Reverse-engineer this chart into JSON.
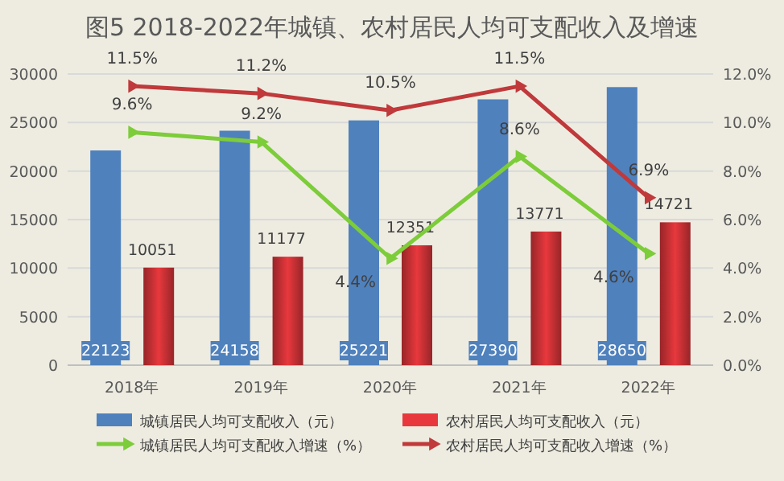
{
  "chart_data": {
    "type": "bar",
    "title": "图5 2018-2022年城镇、农村居民人均可支配收入及增速",
    "categories": [
      "2018年",
      "2019年",
      "2020年",
      "2021年",
      "2022年"
    ],
    "series": [
      {
        "name": "城镇居民人均可支配收入（元）",
        "type": "bar",
        "color": "#4f81bd",
        "values": [
          22123,
          24158,
          25221,
          27390,
          28650
        ],
        "value_labels": [
          "22123",
          "24158",
          "25221",
          "27390",
          "28650"
        ]
      },
      {
        "name": "农村居民人均可支配收入（元）",
        "type": "bar",
        "color": "#e8383d",
        "values": [
          10051,
          11177,
          12351,
          13771,
          14721
        ],
        "value_labels": [
          "10051",
          "11177",
          "12351",
          "13771",
          "14721"
        ]
      },
      {
        "name": "城镇居民人均可支配收入增速（%）",
        "type": "line",
        "axis": "y2",
        "color": "#7dcc3a",
        "values": [
          9.6,
          9.2,
          4.4,
          8.6,
          4.6
        ],
        "value_labels": [
          "9.6%",
          "9.2%",
          "4.4%",
          "8.6%",
          "4.6%"
        ]
      },
      {
        "name": "农村居民人均可支配收入增速（%）",
        "type": "line",
        "axis": "y2",
        "color": "#c0393b",
        "values": [
          11.5,
          11.2,
          10.5,
          11.5,
          6.9
        ],
        "value_labels": [
          "11.5%",
          "11.2%",
          "10.5%",
          "11.5%",
          "6.9%"
        ]
      }
    ],
    "ylim": [
      0,
      30000
    ],
    "yticks": [
      0,
      5000,
      10000,
      15000,
      20000,
      25000,
      30000
    ],
    "y2lim": [
      0,
      12
    ],
    "y2ticks": [
      {
        "value": 0,
        "label": "0.0%"
      },
      {
        "value": 2,
        "label": "2.0%"
      },
      {
        "value": 4,
        "label": "4.0%"
      },
      {
        "value": 6,
        "label": "6.0%"
      },
      {
        "value": 8,
        "label": "8.0%"
      },
      {
        "value": 10,
        "label": "10.0%"
      },
      {
        "value": 12,
        "label": "12.0%"
      }
    ],
    "grid": "y",
    "legend": "bottom",
    "marker": "triangle",
    "line_style": "solid"
  }
}
